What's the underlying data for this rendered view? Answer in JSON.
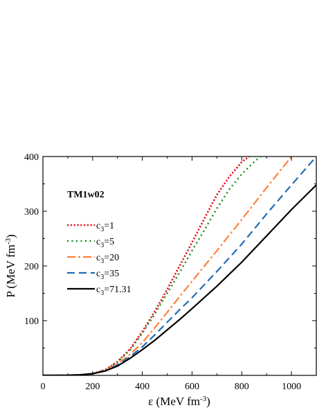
{
  "chart_data": {
    "type": "line",
    "title": "",
    "annotation": "TM1w02",
    "xlabel": {
      "main": "ε (MeV fm",
      "sup": "-3",
      "end": ")"
    },
    "ylabel": {
      "main": "P (MeV fm",
      "sup": "-3",
      "end": ")"
    },
    "xlim": [
      0,
      1100
    ],
    "ylim": [
      0,
      400
    ],
    "xticks": [
      0,
      200,
      400,
      600,
      800,
      1000
    ],
    "yticks": [
      100,
      200,
      300,
      400
    ],
    "legend_position": "upper-left",
    "series": [
      {
        "name": "c3=1",
        "label_base": "c",
        "label_sub": "3",
        "label_rest": "=1",
        "color": "#e8101a",
        "style": "dotted-dense",
        "points": [
          [
            0,
            0
          ],
          [
            100,
            0.3
          ],
          [
            150,
            1
          ],
          [
            200,
            3
          ],
          [
            250,
            10
          ],
          [
            300,
            25
          ],
          [
            350,
            48
          ],
          [
            400,
            80
          ],
          [
            450,
            117
          ],
          [
            500,
            157
          ],
          [
            550,
            200
          ],
          [
            600,
            243
          ],
          [
            650,
            287
          ],
          [
            700,
            330
          ],
          [
            750,
            363
          ],
          [
            800,
            390
          ],
          [
            830,
            400
          ]
        ]
      },
      {
        "name": "c3=5",
        "label_base": "c",
        "label_sub": "3",
        "label_rest": "=5",
        "color": "#1a8a1a",
        "style": "dotted",
        "points": [
          [
            0,
            0
          ],
          [
            100,
            0.3
          ],
          [
            150,
            1
          ],
          [
            200,
            3
          ],
          [
            250,
            10
          ],
          [
            300,
            24
          ],
          [
            350,
            46
          ],
          [
            400,
            77
          ],
          [
            450,
            112
          ],
          [
            500,
            150
          ],
          [
            550,
            188
          ],
          [
            600,
            228
          ],
          [
            650,
            266
          ],
          [
            700,
            305
          ],
          [
            750,
            340
          ],
          [
            800,
            368
          ],
          [
            850,
            390
          ],
          [
            875,
            400
          ]
        ]
      },
      {
        "name": "c3=20",
        "label_base": "c",
        "label_sub": "3",
        "label_rest": "=20",
        "color": "#ff7f3a",
        "style": "dashdot",
        "points": [
          [
            0,
            0
          ],
          [
            100,
            0.3
          ],
          [
            150,
            1
          ],
          [
            200,
            3
          ],
          [
            250,
            9
          ],
          [
            300,
            21
          ],
          [
            350,
            38
          ],
          [
            400,
            60
          ],
          [
            450,
            87
          ],
          [
            500,
            115
          ],
          [
            550,
            144
          ],
          [
            600,
            172
          ],
          [
            650,
            200
          ],
          [
            700,
            228
          ],
          [
            800,
            285
          ],
          [
            900,
            343
          ],
          [
            1000,
            400
          ]
        ]
      },
      {
        "name": "c3=35",
        "label_base": "c",
        "label_sub": "3",
        "label_rest": "=35",
        "color": "#1f6bb5",
        "style": "dashed",
        "points": [
          [
            0,
            0
          ],
          [
            100,
            0.3
          ],
          [
            150,
            1
          ],
          [
            200,
            3
          ],
          [
            250,
            8
          ],
          [
            300,
            19
          ],
          [
            350,
            34
          ],
          [
            400,
            52
          ],
          [
            450,
            74
          ],
          [
            500,
            97
          ],
          [
            550,
            120
          ],
          [
            600,
            142
          ],
          [
            700,
            190
          ],
          [
            800,
            240
          ],
          [
            900,
            295
          ],
          [
            1000,
            348
          ],
          [
            1100,
            400
          ]
        ]
      },
      {
        "name": "c3=71.31",
        "label_base": "c",
        "label_sub": "3",
        "label_rest": "=71.31",
        "color": "#000000",
        "style": "solid",
        "points": [
          [
            0,
            0
          ],
          [
            100,
            0.3
          ],
          [
            150,
            1
          ],
          [
            200,
            3
          ],
          [
            250,
            8
          ],
          [
            300,
            17
          ],
          [
            350,
            31
          ],
          [
            400,
            47
          ],
          [
            450,
            64
          ],
          [
            500,
            83
          ],
          [
            550,
            102
          ],
          [
            600,
            122
          ],
          [
            700,
            163
          ],
          [
            800,
            207
          ],
          [
            900,
            255
          ],
          [
            1000,
            303
          ],
          [
            1100,
            348
          ]
        ]
      }
    ]
  }
}
